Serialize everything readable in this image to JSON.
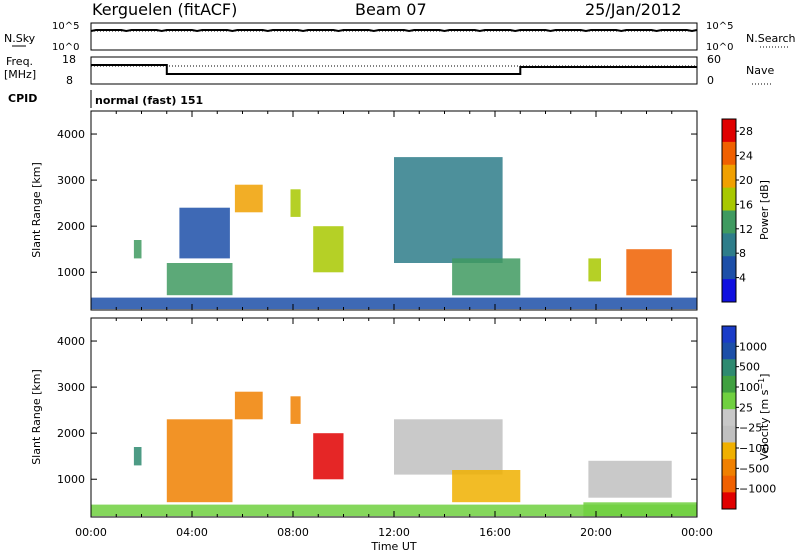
{
  "header": {
    "station": "Kerguelen (fitACF)",
    "beam": "Beam 07",
    "date": "25/Jan/2012"
  },
  "noise_panel": {
    "left_label": "N.Sky",
    "left_ticks": [
      "10^5",
      "10^0"
    ],
    "right_label": "N.Search",
    "right_ticks": [
      "10^5",
      "10^0"
    ]
  },
  "freq_panel": {
    "left_label": "Freq.",
    "left_unit": "[MHz]",
    "left_ticks": [
      "18",
      "8"
    ],
    "right_label": "Nave",
    "right_ticks": [
      "60",
      "0"
    ]
  },
  "cpid": {
    "label": "CPID",
    "value": "normal (fast) 151"
  },
  "x_axis": {
    "label": "Time UT",
    "ticks": [
      "00:00",
      "04:00",
      "08:00",
      "12:00",
      "16:00",
      "20:00",
      "00:00"
    ]
  },
  "colors": {
    "axis": "#000000",
    "power_scale": [
      "#1010e0",
      "#1c4fa8",
      "#2e7d8a",
      "#3f9a60",
      "#a8c800",
      "#f0a000",
      "#f06000",
      "#e00000"
    ],
    "velocity_scale": [
      "#e00000",
      "#f06000",
      "#f08000",
      "#f0b000",
      "#c0c0c0",
      "#c8c8c8",
      "#70d040",
      "#40a040",
      "#2e8a70",
      "#1c4fa8",
      "#1a3cc8"
    ]
  },
  "chart_data": [
    {
      "type": "heatmap",
      "title": "",
      "ylabel": "Slant Range [km]",
      "xlabel": "",
      "x_range": [
        "00:00",
        "24:00"
      ],
      "ylim": [
        180,
        4500
      ],
      "yticks": [
        "1000",
        "2000",
        "3000",
        "4000"
      ],
      "colorbar": {
        "label": "Power [dB]",
        "ticks": [
          "4",
          "8",
          "12",
          "16",
          "20",
          "24",
          "28"
        ],
        "range": [
          0,
          30
        ]
      },
      "regions": [
        {
          "t_start": 0.0,
          "t_end": 24.0,
          "range_low": 200,
          "range_high": 450,
          "value": 6
        },
        {
          "t_start": 1.7,
          "t_end": 2.0,
          "range_low": 1300,
          "range_high": 1700,
          "value": 12
        },
        {
          "t_start": 3.0,
          "t_end": 5.6,
          "range_low": 500,
          "range_high": 1200,
          "value": 14
        },
        {
          "t_start": 3.5,
          "t_end": 5.5,
          "range_low": 1300,
          "range_high": 2400,
          "value": 6
        },
        {
          "t_start": 5.7,
          "t_end": 6.8,
          "range_low": 2300,
          "range_high": 2900,
          "value": 20
        },
        {
          "t_start": 7.9,
          "t_end": 8.3,
          "range_low": 2200,
          "range_high": 2800,
          "value": 18
        },
        {
          "t_start": 8.8,
          "t_end": 10.0,
          "range_low": 1000,
          "range_high": 2000,
          "value": 18
        },
        {
          "t_start": 12.0,
          "t_end": 16.3,
          "range_low": 1200,
          "range_high": 3500,
          "value": 10
        },
        {
          "t_start": 14.3,
          "t_end": 17.0,
          "range_low": 500,
          "range_high": 1300,
          "value": 12
        },
        {
          "t_start": 19.7,
          "t_end": 20.2,
          "range_low": 800,
          "range_high": 1300,
          "value": 18
        },
        {
          "t_start": 21.2,
          "t_end": 23.0,
          "range_low": 500,
          "range_high": 1500,
          "value": 26
        }
      ]
    },
    {
      "type": "heatmap",
      "title": "",
      "ylabel": "Slant Range [km]",
      "xlabel": "Time UT",
      "x_range": [
        "00:00",
        "24:00"
      ],
      "ylim": [
        180,
        4500
      ],
      "yticks": [
        "1000",
        "2000",
        "3000",
        "4000"
      ],
      "colorbar": {
        "label": "Velocity [m s^-1]",
        "ticks": [
          "1000",
          "500",
          "100",
          "25",
          "−25",
          "−100",
          "−500",
          "−1000"
        ]
      },
      "regions": [
        {
          "t_start": 0.0,
          "t_end": 24.0,
          "range_low": 200,
          "range_high": 450,
          "value": 80
        },
        {
          "t_start": 1.7,
          "t_end": 2.0,
          "range_low": 1300,
          "range_high": 1700,
          "value": 100
        },
        {
          "t_start": 3.0,
          "t_end": 5.6,
          "range_low": 500,
          "range_high": 2300,
          "value": -120
        },
        {
          "t_start": 5.7,
          "t_end": 6.8,
          "range_low": 2300,
          "range_high": 2900,
          "value": -150
        },
        {
          "t_start": 7.9,
          "t_end": 8.3,
          "range_low": 2200,
          "range_high": 2800,
          "value": -150
        },
        {
          "t_start": 8.8,
          "t_end": 10.0,
          "range_low": 1000,
          "range_high": 2000,
          "value": -800
        },
        {
          "t_start": 12.0,
          "t_end": 16.3,
          "range_low": 1100,
          "range_high": 2300,
          "value": 0
        },
        {
          "t_start": 14.3,
          "t_end": 17.0,
          "range_low": 500,
          "range_high": 1200,
          "value": -40
        },
        {
          "t_start": 19.7,
          "t_end": 23.0,
          "range_low": 600,
          "range_high": 1400,
          "value": 0
        },
        {
          "t_start": 19.5,
          "t_end": 24.0,
          "range_low": 200,
          "range_high": 500,
          "value": 80
        }
      ]
    }
  ]
}
